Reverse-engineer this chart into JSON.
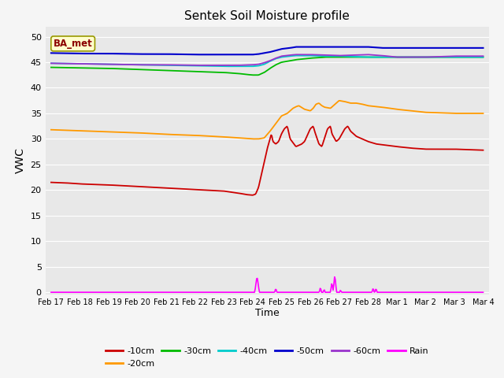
{
  "title": "Sentek Soil Moisture profile",
  "xlabel": "Time",
  "ylabel": "VWC",
  "legend_label": "BA_met",
  "ylim": [
    -0.5,
    52
  ],
  "yticks": [
    0,
    5,
    10,
    15,
    20,
    25,
    30,
    35,
    40,
    45,
    50
  ],
  "colors": {
    "-10cm": "#cc0000",
    "-20cm": "#ff9900",
    "-30cm": "#00bb00",
    "-40cm": "#00cccc",
    "-50cm": "#0000cc",
    "-60cm": "#9933cc",
    "Rain": "#ff00ff"
  },
  "fig_facecolor": "#f5f5f5",
  "ax_facecolor": "#e8e8e8",
  "grid_color": "#ffffff"
}
